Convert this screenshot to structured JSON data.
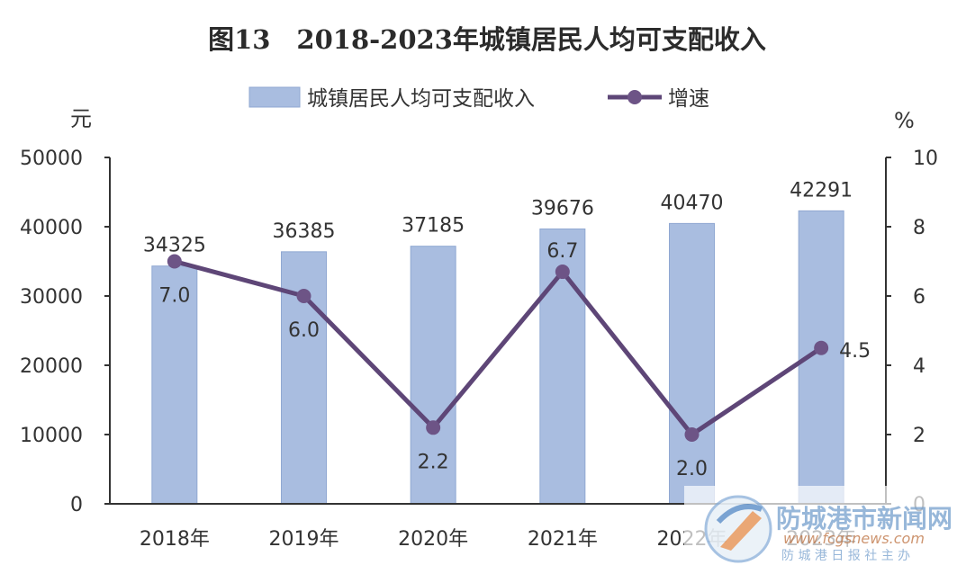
{
  "chart_data": {
    "type": "bar",
    "title": "图13　2018-2023年城镇居民人均可支配收入",
    "categories": [
      "2018年",
      "2019年",
      "2020年",
      "2021年",
      "2022年",
      "2023年"
    ],
    "series": [
      {
        "name": "城镇居民人均可支配收入",
        "type": "bar",
        "axis": "left",
        "values": [
          34325,
          36385,
          37185,
          39676,
          40470,
          42291
        ]
      },
      {
        "name": "增速",
        "type": "line",
        "axis": "right",
        "values": [
          7.0,
          6.0,
          2.2,
          6.7,
          2.0,
          4.5
        ]
      }
    ],
    "bar_labels": [
      "34325",
      "36385",
      "37185",
      "39676",
      "40470",
      "42291"
    ],
    "line_labels": [
      "7.0",
      "6.0",
      "2.2",
      "6.7",
      "2.0",
      "4.5"
    ],
    "y_left": {
      "unit": "元",
      "ylim": [
        0,
        50000
      ],
      "ticks": [
        "0",
        "10000",
        "20000",
        "30000",
        "40000",
        "50000"
      ]
    },
    "y_right": {
      "unit": "%",
      "ylim": [
        0,
        10
      ],
      "ticks": [
        "0",
        "2",
        "4",
        "6",
        "8",
        "10"
      ]
    },
    "legend_position": "top",
    "grid": false,
    "colors": {
      "bar": "#a9bde0",
      "bar_stroke": "#90a8d2",
      "line": "#5e4677",
      "marker": "#6d5486",
      "axis": "#333333"
    }
  },
  "watermark": {
    "main": "防城港市新闻网",
    "sub": "防 城 港 日 报 社 主 办",
    "url": "www.fcgsnews.com"
  }
}
